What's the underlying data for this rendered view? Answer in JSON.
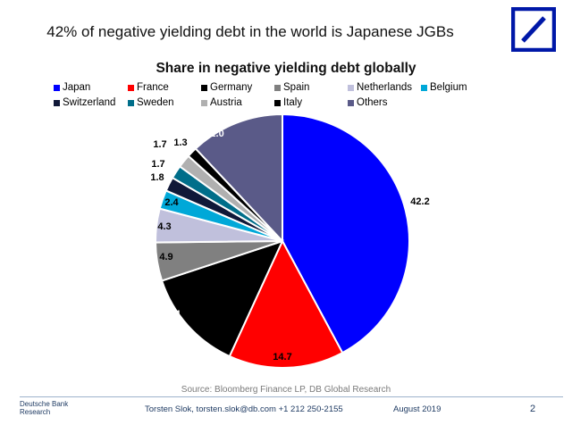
{
  "slide_title": "42% of negative yielding debt in the world is Japanese JGBs",
  "logo": {
    "icon": "deutsche-bank-logo",
    "color": "#0018A8"
  },
  "chart_data": {
    "type": "pie",
    "title": "Share in negative yielding debt globally",
    "legend_position": "top",
    "series": [
      {
        "name": "Japan",
        "value": 42.2,
        "color": "#0000FF"
      },
      {
        "name": "France",
        "value": 14.7,
        "color": "#FF0000"
      },
      {
        "name": "Germany",
        "value": 13.1,
        "color": "#000000"
      },
      {
        "name": "Spain",
        "value": 4.9,
        "color": "#808080"
      },
      {
        "name": "Netherlands",
        "value": 4.3,
        "color": "#C0C0DC"
      },
      {
        "name": "Belgium",
        "value": 2.4,
        "color": "#00A8D8"
      },
      {
        "name": "Switzerland",
        "value": 1.8,
        "color": "#101838"
      },
      {
        "name": "Sweden",
        "value": 1.7,
        "color": "#006E8A"
      },
      {
        "name": "Austria",
        "value": 1.7,
        "color": "#B0B0B0"
      },
      {
        "name": "Italy",
        "value": 1.3,
        "color": "#000000"
      },
      {
        "name": "Others",
        "value": 12.0,
        "color": "#5A5A88"
      }
    ]
  },
  "source": "Source: Bloomberg Finance LP, DB Global Research",
  "footer": {
    "brand_line1": "Deutsche Bank",
    "brand_line2": "Research",
    "contact": "Torsten Slok, torsten.slok@db.com  +1 212 250-2155",
    "date": "August 2019",
    "page": "2"
  }
}
